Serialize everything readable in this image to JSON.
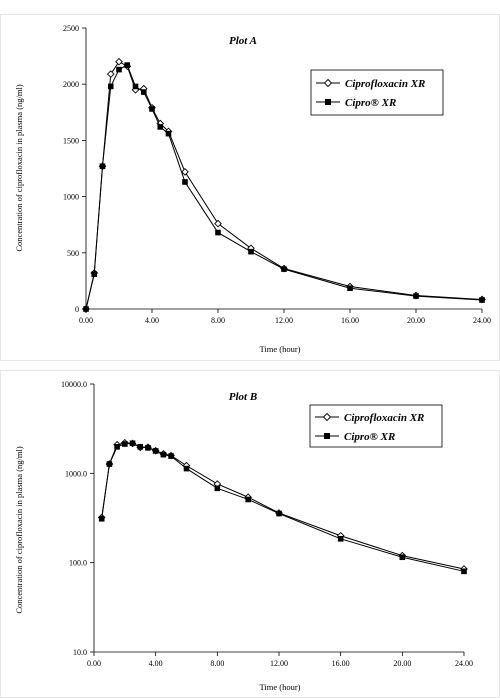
{
  "chart_data": [
    {
      "type": "line",
      "title": "Plot A",
      "xlabel": "Time (hour)",
      "ylabel": "Concentration of ciprofloxacin in plasma (ng/ml)",
      "xlim": [
        0,
        24
      ],
      "ylim": [
        0,
        2500
      ],
      "y_scale": "linear",
      "grid": false,
      "legend_position": "top-right",
      "x_ticks": [
        0,
        4,
        8,
        12,
        16,
        20,
        24
      ],
      "x_tick_labels": [
        "0.00",
        "4.00",
        "8.00",
        "12.00",
        "16.00",
        "20.00",
        "24.00"
      ],
      "y_ticks": [
        0,
        500,
        1000,
        1500,
        2000,
        2500
      ],
      "y_tick_labels": [
        "0",
        "500",
        "1000",
        "1500",
        "2000",
        "2500"
      ],
      "series": [
        {
          "name": "Ciprofloxacin XR",
          "marker": "diamond-open",
          "x": [
            0,
            0.5,
            1,
            1.5,
            2,
            2.5,
            3,
            3.5,
            4,
            4.5,
            5,
            6,
            8,
            10,
            12,
            16,
            20,
            24
          ],
          "y": [
            0,
            320,
            1270,
            2090,
            2200,
            2160,
            1950,
            1960,
            1790,
            1650,
            1580,
            1220,
            760,
            540,
            360,
            200,
            120,
            85
          ]
        },
        {
          "name": "Cipro® XR",
          "marker": "square-filled",
          "x": [
            0,
            0.5,
            1,
            1.5,
            2,
            2.5,
            3,
            3.5,
            4,
            4.5,
            5,
            6,
            8,
            10,
            12,
            16,
            20,
            24
          ],
          "y": [
            0,
            310,
            1270,
            1980,
            2130,
            2170,
            1980,
            1930,
            1780,
            1620,
            1560,
            1130,
            680,
            510,
            355,
            185,
            115,
            80
          ]
        }
      ]
    },
    {
      "type": "line",
      "title": "Plot B",
      "xlabel": "Time (hour)",
      "ylabel": "Concentration of ciprofloxacin in plasma (ng/ml)",
      "xlim": [
        0,
        24
      ],
      "ylim": [
        10,
        10000
      ],
      "y_scale": "log",
      "grid": false,
      "legend_position": "top-right",
      "x_ticks": [
        0,
        4,
        8,
        12,
        16,
        20,
        24
      ],
      "x_tick_labels": [
        "0.00",
        "4.00",
        "8.00",
        "12.00",
        "16.00",
        "20.00",
        "24.00"
      ],
      "y_ticks": [
        10,
        100,
        1000,
        10000
      ],
      "y_tick_labels": [
        "10.0",
        "100.0",
        "1000.0",
        "10000.0"
      ],
      "series": [
        {
          "name": "Ciprofloxacin XR",
          "marker": "diamond-open",
          "x": [
            0.5,
            1,
            1.5,
            2,
            2.5,
            3,
            3.5,
            4,
            4.5,
            5,
            6,
            8,
            10,
            12,
            16,
            20,
            24
          ],
          "y": [
            320,
            1270,
            2090,
            2200,
            2160,
            1950,
            1960,
            1790,
            1650,
            1580,
            1220,
            760,
            540,
            360,
            200,
            120,
            85
          ]
        },
        {
          "name": "Cipro® XR",
          "marker": "square-filled",
          "x": [
            0.5,
            1,
            1.5,
            2,
            2.5,
            3,
            3.5,
            4,
            4.5,
            5,
            6,
            8,
            10,
            12,
            16,
            20,
            24
          ],
          "y": [
            310,
            1270,
            1980,
            2130,
            2170,
            1980,
            1930,
            1780,
            1620,
            1560,
            1130,
            680,
            510,
            355,
            185,
            115,
            80
          ]
        }
      ]
    }
  ]
}
